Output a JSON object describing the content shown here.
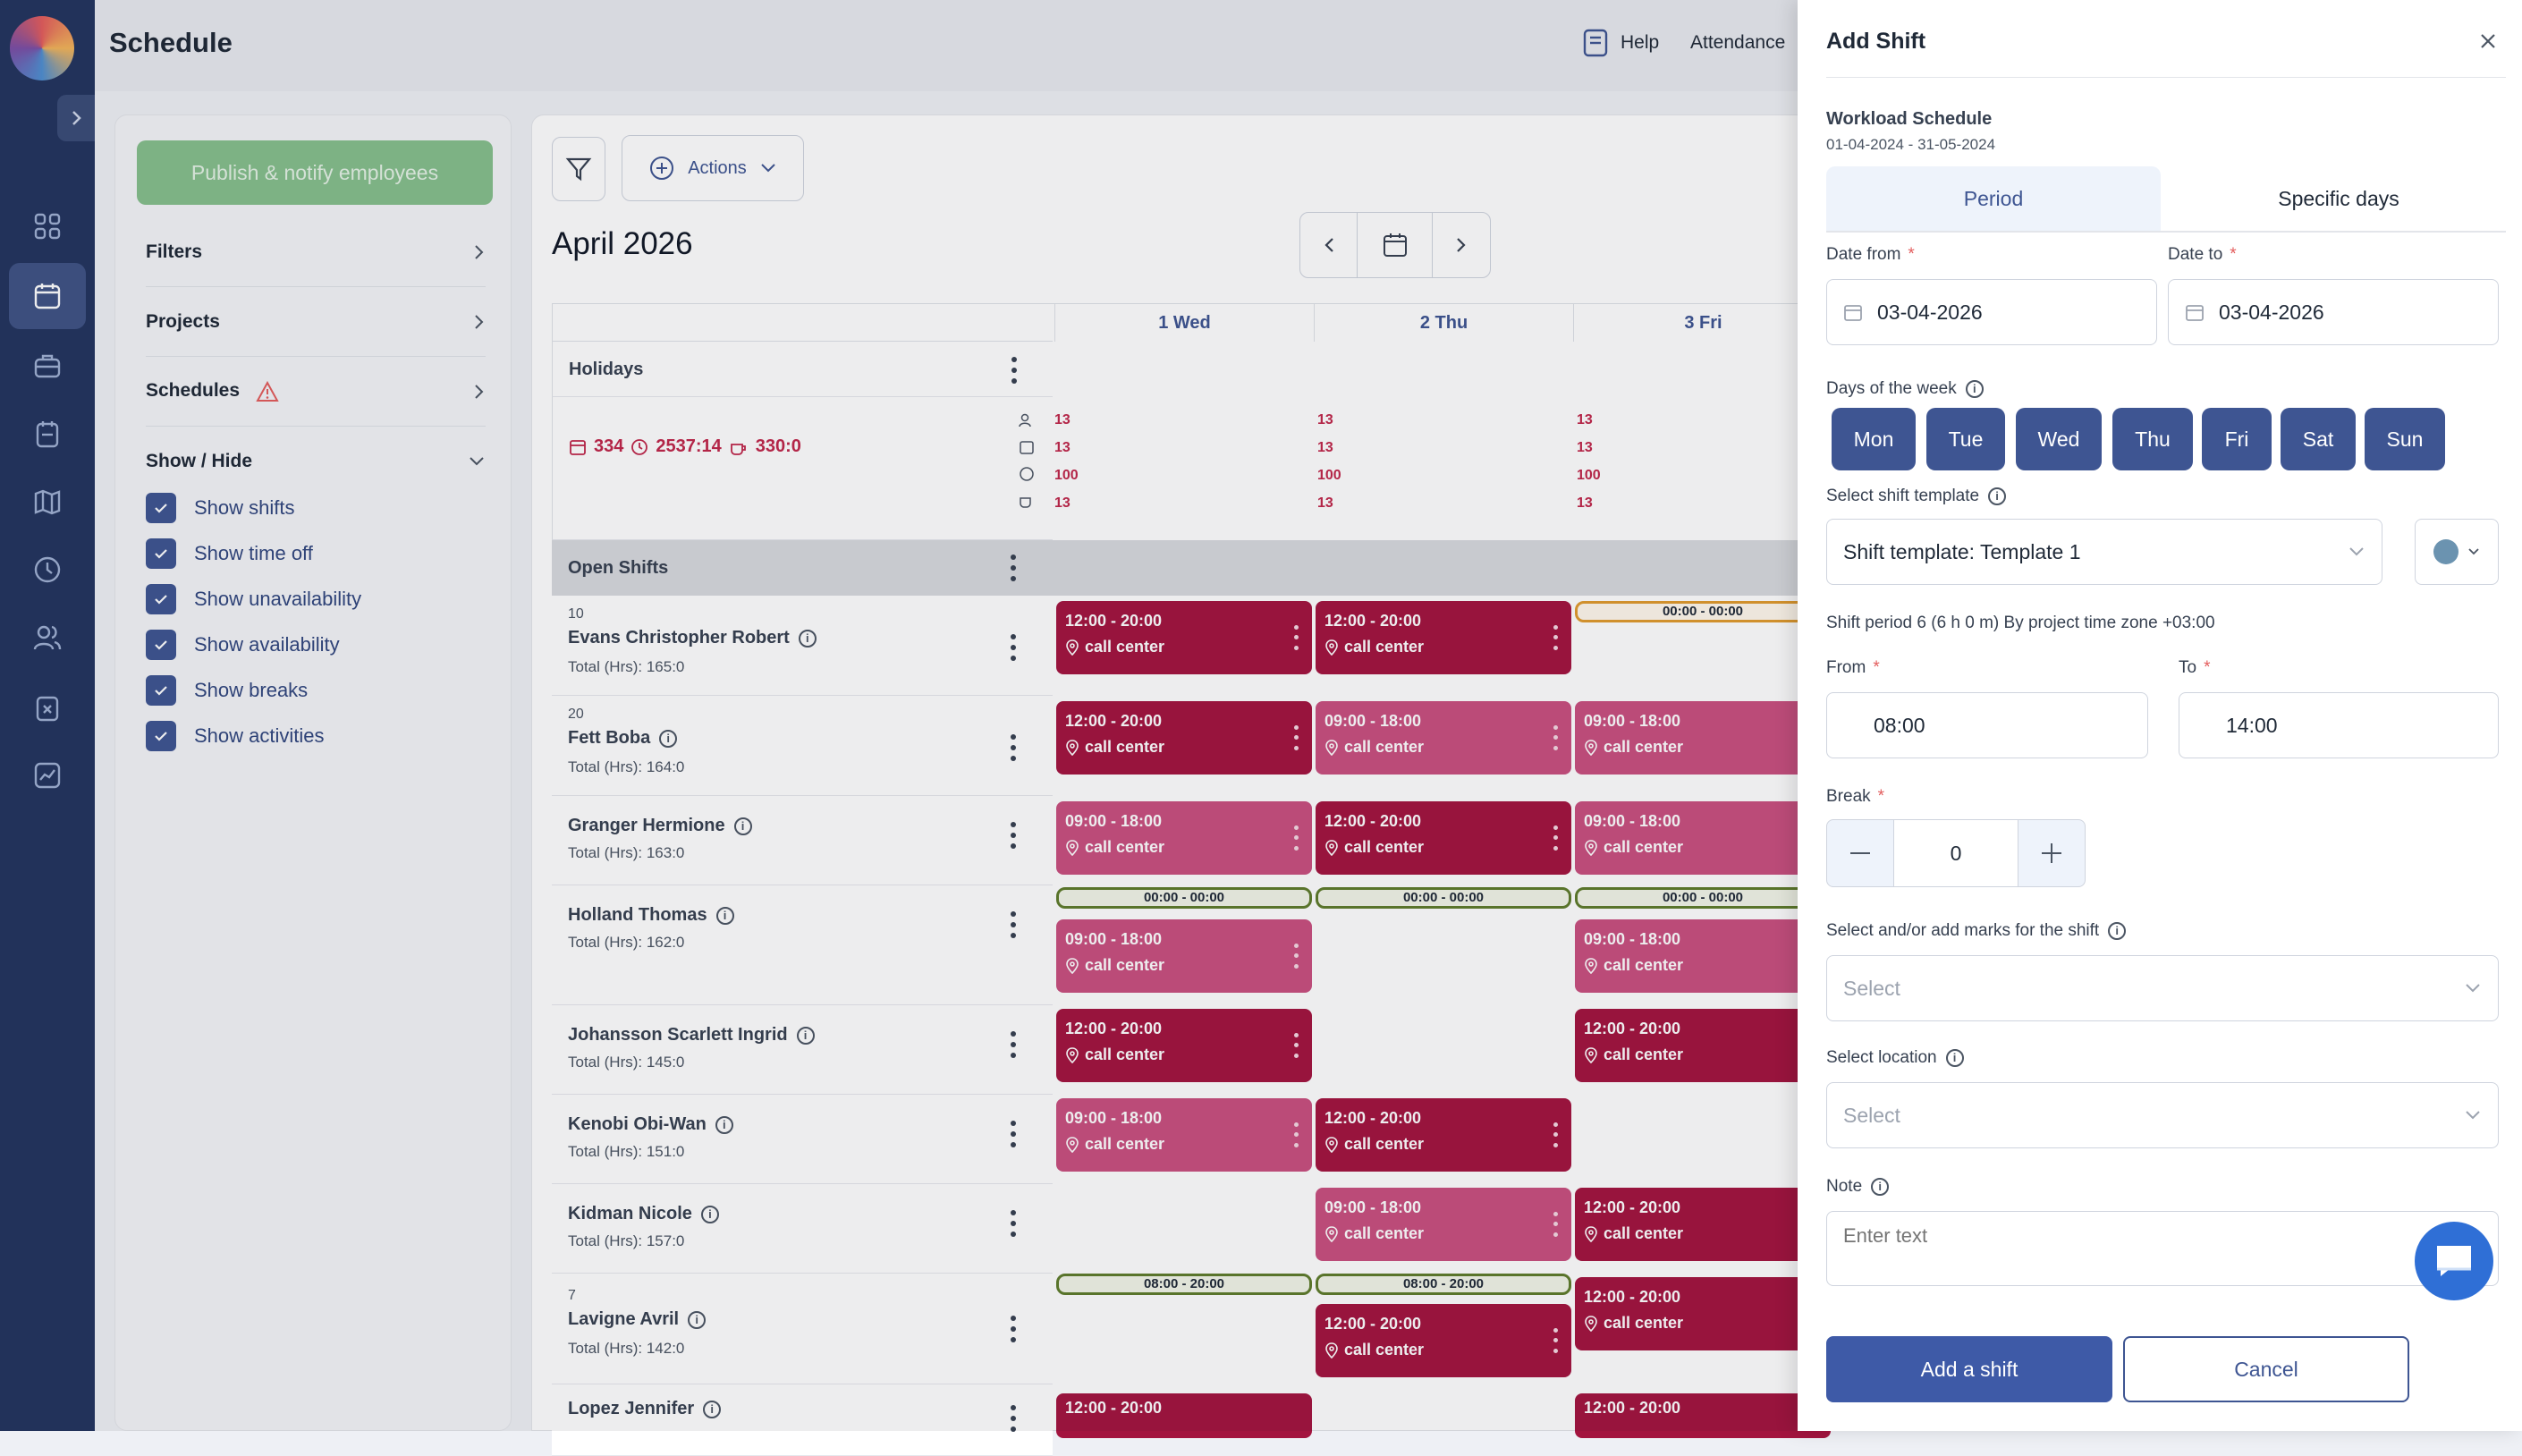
{
  "header": {
    "title": "Schedule",
    "help": "Help",
    "attendance": "Attendance"
  },
  "left": {
    "publish": "Publish & notify employees",
    "filters": "Filters",
    "projects": "Projects",
    "schedules": "Schedules",
    "show_hide": "Show / Hide",
    "checks": [
      "Show shifts",
      "Show time off",
      "Show unavailability",
      "Show availability",
      "Show breaks",
      "Show activities"
    ]
  },
  "toolbar": {
    "actions": "Actions",
    "month": "April 2026"
  },
  "grid": {
    "days": [
      "1 Wed",
      "2 Thu",
      "3 Fri"
    ],
    "holidays": "Holidays",
    "stats": {
      "a": "334",
      "b": "2537:14",
      "c": "330:0"
    },
    "daystats": [
      "13",
      "13",
      "100",
      "13"
    ],
    "open_shifts": "Open Shifts",
    "employees": [
      {
        "num": "10",
        "name": "Evans Christopher Robert",
        "total": "Total (Hrs): 165:0"
      },
      {
        "num": "20",
        "name": "Fett Boba",
        "total": "Total (Hrs): 164:0"
      },
      {
        "num": "",
        "name": "Granger Hermione",
        "total": "Total (Hrs): 163:0"
      },
      {
        "num": "",
        "name": "Holland Thomas",
        "total": "Total (Hrs): 162:0"
      },
      {
        "num": "",
        "name": "Johansson Scarlett Ingrid",
        "total": "Total (Hrs): 145:0"
      },
      {
        "num": "",
        "name": "Kenobi Obi-Wan",
        "total": "Total (Hrs): 151:0"
      },
      {
        "num": "",
        "name": "Kidman Nicole",
        "total": "Total (Hrs): 157:0"
      },
      {
        "num": "7",
        "name": "Lavigne Avril",
        "total": "Total (Hrs): 142:0"
      },
      {
        "num": "",
        "name": "Lopez Jennifer",
        "total": ""
      }
    ],
    "shift_a": "12:00 - 20:00",
    "shift_b": "09:00 - 18:00",
    "location": "call center",
    "pill_zero": "00:00 - 00:00",
    "pill_day": "08:00 - 20:00"
  },
  "drawer": {
    "title": "Add Shift",
    "schedule_name": "Workload Schedule",
    "schedule_range": "01-04-2024 - 31-05-2024",
    "tab_period": "Period",
    "tab_specific": "Specific days",
    "date_from_label": "Date from",
    "date_to_label": "Date to",
    "date_from": "03-04-2026",
    "date_to": "03-04-2026",
    "days_label": "Days of the week",
    "days": [
      "Mon",
      "Tue",
      "Wed",
      "Thu",
      "Fri",
      "Sat",
      "Sun"
    ],
    "template_label": "Select shift template",
    "template_value": "Shift template: Template 1",
    "template_color": "#6b93b0",
    "period_info": "Shift period 6 (6 h 0 m) By project time zone +03:00",
    "from_label": "From",
    "to_label": "To",
    "from_value": "08:00",
    "to_value": "14:00",
    "break_label": "Break",
    "break_value": "0",
    "marks_label": "Select and/or add marks for the shift",
    "marks_placeholder": "Select",
    "location_label": "Select location",
    "location_placeholder": "Select",
    "note_label": "Note",
    "note_placeholder": "Enter text",
    "add_button": "Add a shift",
    "cancel_button": "Cancel",
    "required_mark": "*"
  },
  "colors": {
    "primary": "#3e5592",
    "shift_dark": "#a3143f",
    "shift_light": "#c9507f",
    "publish": "#86bf8d"
  }
}
